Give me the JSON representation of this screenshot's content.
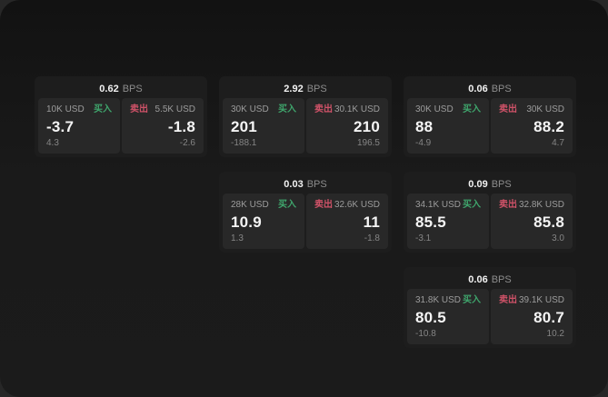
{
  "labels": {
    "bps_unit": "BPS",
    "buy": "买入",
    "sell": "卖出"
  },
  "colors": {
    "buy": "#3fa56c",
    "sell": "#cf5268",
    "panel_bg": "#282828",
    "card_bg": "#1d1d1d",
    "app_bg": "#1a1a1a"
  },
  "cards": [
    {
      "bps": "0.62",
      "row": 1,
      "col": 1,
      "buy": {
        "amount": "10K USD",
        "price": "-3.7",
        "delta": "4.3"
      },
      "sell": {
        "amount": "5.5K USD",
        "price": "-1.8",
        "delta": "-2.6"
      }
    },
    {
      "bps": "2.92",
      "row": 1,
      "col": 2,
      "buy": {
        "amount": "30K USD",
        "price": "201",
        "delta": "-188.1"
      },
      "sell": {
        "amount": "30.1K USD",
        "price": "210",
        "delta": "196.5"
      }
    },
    {
      "bps": "0.06",
      "row": 1,
      "col": 3,
      "buy": {
        "amount": "30K USD",
        "price": "88",
        "delta": "-4.9"
      },
      "sell": {
        "amount": "30K USD",
        "price": "88.2",
        "delta": "4.7"
      }
    },
    {
      "bps": "0.03",
      "row": 2,
      "col": 2,
      "buy": {
        "amount": "28K USD",
        "price": "10.9",
        "delta": "1.3"
      },
      "sell": {
        "amount": "32.6K USD",
        "price": "11",
        "delta": "-1.8"
      }
    },
    {
      "bps": "0.09",
      "row": 2,
      "col": 3,
      "buy": {
        "amount": "34.1K USD",
        "price": "85.5",
        "delta": "-3.1"
      },
      "sell": {
        "amount": "32.8K USD",
        "price": "85.8",
        "delta": "3.0"
      }
    },
    {
      "bps": "0.06",
      "row": 3,
      "col": 3,
      "buy": {
        "amount": "31.8K USD",
        "price": "80.5",
        "delta": "-10.8"
      },
      "sell": {
        "amount": "39.1K USD",
        "price": "80.7",
        "delta": "10.2"
      }
    }
  ]
}
